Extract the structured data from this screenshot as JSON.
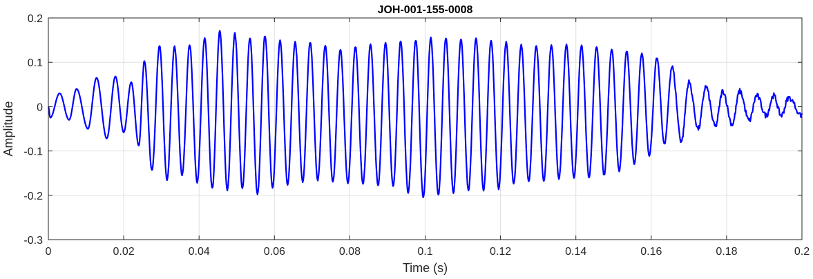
{
  "chart_data": {
    "type": "line",
    "title": "JOH-001-155-0008",
    "xlabel": "Time (s)",
    "ylabel": "Amplitude",
    "xlim": [
      0,
      0.2
    ],
    "ylim": [
      -0.3,
      0.2
    ],
    "xticks": [
      0,
      0.02,
      0.04,
      0.06,
      0.08,
      0.1,
      0.12,
      0.14,
      0.16,
      0.18,
      0.2
    ],
    "xtick_labels": [
      "0",
      "0.02",
      "0.04",
      "0.06",
      "0.08",
      "0.1",
      "0.12",
      "0.14",
      "0.16",
      "0.18",
      "0.2"
    ],
    "yticks": [
      -0.3,
      -0.2,
      -0.1,
      0,
      0.1,
      0.2
    ],
    "ytick_labels": [
      "-0.3",
      "-0.2",
      "-0.1",
      "0",
      "0.1",
      "0.2"
    ],
    "grid": true,
    "series": [
      {
        "color": "#0000ff",
        "peaks": [
          {
            "x": 0.003,
            "y": 0.03
          },
          {
            "x": 0.0075,
            "y": 0.04
          },
          {
            "x": 0.0128,
            "y": 0.065
          },
          {
            "x": 0.0178,
            "y": 0.068
          },
          {
            "x": 0.022,
            "y": 0.055
          },
          {
            "x": 0.0255,
            "y": 0.103
          },
          {
            "x": 0.0295,
            "y": 0.138
          },
          {
            "x": 0.0335,
            "y": 0.135
          },
          {
            "x": 0.0375,
            "y": 0.14
          },
          {
            "x": 0.0415,
            "y": 0.155
          },
          {
            "x": 0.0455,
            "y": 0.17
          },
          {
            "x": 0.0495,
            "y": 0.165
          },
          {
            "x": 0.0535,
            "y": 0.155
          },
          {
            "x": 0.0575,
            "y": 0.16
          },
          {
            "x": 0.0615,
            "y": 0.148
          },
          {
            "x": 0.0655,
            "y": 0.145
          },
          {
            "x": 0.0695,
            "y": 0.145
          },
          {
            "x": 0.0735,
            "y": 0.138
          },
          {
            "x": 0.0775,
            "y": 0.13
          },
          {
            "x": 0.0815,
            "y": 0.135
          },
          {
            "x": 0.0855,
            "y": 0.14
          },
          {
            "x": 0.0895,
            "y": 0.145
          },
          {
            "x": 0.0935,
            "y": 0.148
          },
          {
            "x": 0.0975,
            "y": 0.15
          },
          {
            "x": 0.1015,
            "y": 0.155
          },
          {
            "x": 0.1055,
            "y": 0.155
          },
          {
            "x": 0.1095,
            "y": 0.152
          },
          {
            "x": 0.1135,
            "y": 0.155
          },
          {
            "x": 0.1175,
            "y": 0.15
          },
          {
            "x": 0.1215,
            "y": 0.145
          },
          {
            "x": 0.1255,
            "y": 0.14
          },
          {
            "x": 0.1295,
            "y": 0.138
          },
          {
            "x": 0.1335,
            "y": 0.14
          },
          {
            "x": 0.1375,
            "y": 0.14
          },
          {
            "x": 0.1415,
            "y": 0.138
          },
          {
            "x": 0.1455,
            "y": 0.135
          },
          {
            "x": 0.1495,
            "y": 0.13
          },
          {
            "x": 0.1535,
            "y": 0.125
          },
          {
            "x": 0.1575,
            "y": 0.12
          },
          {
            "x": 0.1615,
            "y": 0.11
          },
          {
            "x": 0.1655,
            "y": 0.09
          },
          {
            "x": 0.17,
            "y": 0.055
          },
          {
            "x": 0.1745,
            "y": 0.045
          },
          {
            "x": 0.179,
            "y": 0.035
          },
          {
            "x": 0.1835,
            "y": 0.035
          },
          {
            "x": 0.188,
            "y": 0.025
          },
          {
            "x": 0.1925,
            "y": 0.025
          },
          {
            "x": 0.1965,
            "y": 0.02
          }
        ],
        "troughs": [
          {
            "x": 0.0005,
            "y": -0.025
          },
          {
            "x": 0.0055,
            "y": -0.03
          },
          {
            "x": 0.0105,
            "y": -0.05
          },
          {
            "x": 0.0155,
            "y": -0.072
          },
          {
            "x": 0.02,
            "y": -0.058
          },
          {
            "x": 0.024,
            "y": -0.088
          },
          {
            "x": 0.0275,
            "y": -0.145
          },
          {
            "x": 0.0315,
            "y": -0.165
          },
          {
            "x": 0.0355,
            "y": -0.155
          },
          {
            "x": 0.0395,
            "y": -0.17
          },
          {
            "x": 0.0435,
            "y": -0.185
          },
          {
            "x": 0.0475,
            "y": -0.188
          },
          {
            "x": 0.0515,
            "y": -0.185
          },
          {
            "x": 0.0555,
            "y": -0.198
          },
          {
            "x": 0.0595,
            "y": -0.182
          },
          {
            "x": 0.0635,
            "y": -0.175
          },
          {
            "x": 0.0675,
            "y": -0.17
          },
          {
            "x": 0.0715,
            "y": -0.165
          },
          {
            "x": 0.0755,
            "y": -0.17
          },
          {
            "x": 0.0795,
            "y": -0.172
          },
          {
            "x": 0.0835,
            "y": -0.175
          },
          {
            "x": 0.0875,
            "y": -0.178
          },
          {
            "x": 0.0915,
            "y": -0.18
          },
          {
            "x": 0.0955,
            "y": -0.195
          },
          {
            "x": 0.0995,
            "y": -0.205
          },
          {
            "x": 0.1035,
            "y": -0.2
          },
          {
            "x": 0.1075,
            "y": -0.195
          },
          {
            "x": 0.1115,
            "y": -0.19
          },
          {
            "x": 0.1155,
            "y": -0.188
          },
          {
            "x": 0.1195,
            "y": -0.185
          },
          {
            "x": 0.1235,
            "y": -0.175
          },
          {
            "x": 0.1275,
            "y": -0.17
          },
          {
            "x": 0.1315,
            "y": -0.168
          },
          {
            "x": 0.1355,
            "y": -0.162
          },
          {
            "x": 0.1395,
            "y": -0.16
          },
          {
            "x": 0.1435,
            "y": -0.16
          },
          {
            "x": 0.1475,
            "y": -0.155
          },
          {
            "x": 0.1515,
            "y": -0.145
          },
          {
            "x": 0.1555,
            "y": -0.13
          },
          {
            "x": 0.1595,
            "y": -0.11
          },
          {
            "x": 0.1635,
            "y": -0.085
          },
          {
            "x": 0.168,
            "y": -0.078
          },
          {
            "x": 0.1725,
            "y": -0.05
          },
          {
            "x": 0.177,
            "y": -0.045
          },
          {
            "x": 0.1815,
            "y": -0.04
          },
          {
            "x": 0.186,
            "y": -0.032
          },
          {
            "x": 0.1905,
            "y": -0.02
          },
          {
            "x": 0.1945,
            "y": -0.02
          },
          {
            "x": 0.2,
            "y": -0.02
          }
        ]
      }
    ]
  }
}
